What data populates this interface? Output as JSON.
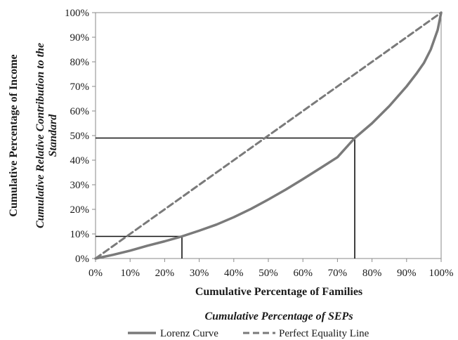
{
  "chart_data": {
    "type": "line",
    "xlabel": "Cumulative Percentage of Families",
    "xlabel_secondary": "Cumulative Percentage of SEPs",
    "ylabel": "Cumulative Percentage of Income",
    "ylabel_secondary": "Cumulative Relative Contribution to the",
    "ylabel_secondary_line2": "Standard",
    "xlim": [
      0,
      100
    ],
    "ylim": [
      0,
      100
    ],
    "x_ticks": [
      "0%",
      "10%",
      "20%",
      "30%",
      "40%",
      "50%",
      "60%",
      "70%",
      "80%",
      "90%",
      "100%"
    ],
    "y_ticks": [
      "0%",
      "10%",
      "20%",
      "30%",
      "40%",
      "50%",
      "60%",
      "70%",
      "80%",
      "90%",
      "100%"
    ],
    "grid": false,
    "legend_position": "bottom",
    "series": [
      {
        "name": "Lorenz Curve",
        "style": "solid",
        "color": "#7a7a7a",
        "x": [
          0,
          5,
          10,
          15,
          20,
          25,
          30,
          35,
          40,
          45,
          50,
          55,
          60,
          65,
          70,
          75,
          80,
          85,
          90,
          93,
          95,
          97,
          99,
          100
        ],
        "y": [
          0,
          1.5,
          3.2,
          5.2,
          7,
          9,
          11.3,
          13.8,
          16.8,
          20.2,
          24,
          28,
          32.3,
          36.7,
          41.2,
          49,
          55,
          62,
          70,
          75.5,
          79.5,
          85,
          93,
          100
        ]
      },
      {
        "name": "Perfect Equality Line",
        "style": "dashed",
        "color": "#7a7a7a",
        "x": [
          0,
          100
        ],
        "y": [
          0,
          100
        ]
      }
    ],
    "reference_lines": [
      {
        "x": 25,
        "y": 9
      },
      {
        "x": 75,
        "y": 49
      }
    ]
  }
}
